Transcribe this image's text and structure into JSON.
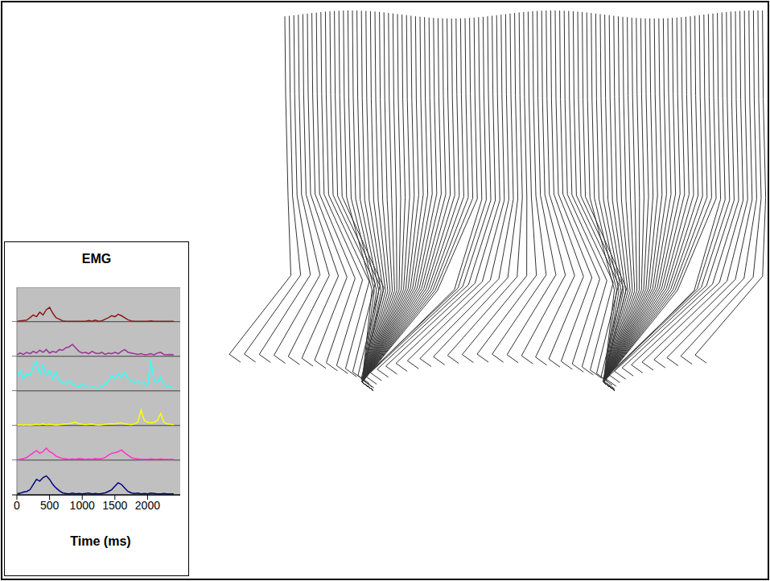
{
  "chart_data": {
    "type": "line",
    "title": "EMG",
    "x_label": "Time (ms)",
    "x": [
      0,
      50,
      100,
      150,
      200,
      250,
      300,
      350,
      400,
      450,
      500,
      550,
      600,
      650,
      700,
      750,
      800,
      850,
      900,
      950,
      1000,
      1050,
      1100,
      1150,
      1200,
      1250,
      1300,
      1350,
      1400,
      1450,
      1500,
      1550,
      1600,
      1650,
      1700,
      1750,
      1800,
      1850,
      1900,
      1950,
      2000,
      2050,
      2100,
      2150,
      2200,
      2250,
      2300,
      2350,
      2400
    ],
    "xlim": [
      0,
      2500
    ],
    "xticks": [
      0,
      500,
      1000,
      1500,
      2000
    ],
    "ylim": [
      0,
      1
    ],
    "yticks": [
      0
    ],
    "tick_labels": "x",
    "series": [
      {
        "color": "#8b1a1a",
        "values": [
          0.02,
          0.03,
          0.04,
          0.05,
          0.12,
          0.2,
          0.15,
          0.28,
          0.2,
          0.35,
          0.42,
          0.25,
          0.12,
          0.08,
          0.03,
          0.02,
          0.02,
          0.02,
          0.02,
          0.02,
          0.02,
          0.02,
          0.04,
          0.02,
          0.05,
          0.02,
          0.03,
          0.08,
          0.12,
          0.18,
          0.15,
          0.22,
          0.18,
          0.12,
          0.06,
          0.03,
          0.02,
          0.02,
          0.02,
          0.02,
          0.02,
          0.03,
          0.02,
          0.02,
          0.02,
          0.02,
          0.02,
          0.02,
          0.02
        ]
      },
      {
        "color": "#993399",
        "values": [
          0.05,
          0.1,
          0.06,
          0.12,
          0.08,
          0.15,
          0.1,
          0.18,
          0.12,
          0.2,
          0.1,
          0.15,
          0.12,
          0.2,
          0.18,
          0.25,
          0.28,
          0.35,
          0.25,
          0.15,
          0.1,
          0.12,
          0.08,
          0.15,
          0.1,
          0.08,
          0.12,
          0.06,
          0.1,
          0.08,
          0.12,
          0.08,
          0.15,
          0.2,
          0.12,
          0.1,
          0.08,
          0.06,
          0.08,
          0.05,
          0.06,
          0.08,
          0.05,
          0.1,
          0.12,
          0.06,
          0.05,
          0.06,
          0.05
        ]
      },
      {
        "color": "#33ffff",
        "values": [
          0.4,
          0.6,
          0.35,
          0.5,
          0.45,
          0.7,
          0.85,
          0.5,
          0.75,
          0.45,
          0.6,
          0.35,
          0.55,
          0.3,
          0.25,
          0.2,
          0.3,
          0.2,
          0.15,
          0.12,
          0.2,
          0.15,
          0.1,
          0.12,
          0.1,
          0.1,
          0.12,
          0.2,
          0.3,
          0.45,
          0.35,
          0.5,
          0.4,
          0.55,
          0.35,
          0.3,
          0.25,
          0.3,
          0.2,
          0.25,
          0.15,
          0.9,
          0.3,
          0.25,
          0.4,
          0.2,
          0.1,
          0.12,
          0.1
        ]
      },
      {
        "color": "#ffff00",
        "values": [
          0.02,
          0.03,
          0.02,
          0.03,
          0.02,
          0.03,
          0.04,
          0.03,
          0.05,
          0.03,
          0.04,
          0.03,
          0.02,
          0.03,
          0.04,
          0.05,
          0.06,
          0.08,
          0.1,
          0.05,
          0.04,
          0.03,
          0.04,
          0.05,
          0.03,
          0.02,
          0.03,
          0.04,
          0.05,
          0.06,
          0.05,
          0.07,
          0.08,
          0.05,
          0.04,
          0.03,
          0.05,
          0.1,
          0.45,
          0.15,
          0.1,
          0.08,
          0.1,
          0.15,
          0.35,
          0.1,
          0.05,
          0.04,
          0.03
        ]
      },
      {
        "color": "#ff33cc",
        "values": [
          0.02,
          0.03,
          0.05,
          0.08,
          0.15,
          0.22,
          0.28,
          0.2,
          0.25,
          0.35,
          0.25,
          0.2,
          0.12,
          0.08,
          0.05,
          0.04,
          0.03,
          0.04,
          0.03,
          0.05,
          0.04,
          0.03,
          0.04,
          0.03,
          0.05,
          0.04,
          0.05,
          0.08,
          0.15,
          0.2,
          0.22,
          0.25,
          0.3,
          0.22,
          0.15,
          0.08,
          0.05,
          0.04,
          0.03,
          0.03,
          0.03,
          0.04,
          0.03,
          0.03,
          0.04,
          0.03,
          0.03,
          0.03,
          0.03
        ]
      },
      {
        "color": "#000080",
        "values": [
          0.03,
          0.05,
          0.08,
          0.1,
          0.15,
          0.3,
          0.45,
          0.4,
          0.5,
          0.55,
          0.45,
          0.3,
          0.2,
          0.12,
          0.06,
          0.04,
          0.03,
          0.05,
          0.03,
          0.04,
          0.03,
          0.04,
          0.05,
          0.03,
          0.04,
          0.03,
          0.04,
          0.06,
          0.1,
          0.15,
          0.25,
          0.35,
          0.3,
          0.2,
          0.1,
          0.06,
          0.04,
          0.05,
          0.03,
          0.04,
          0.03,
          0.05,
          0.04,
          0.03,
          0.03,
          0.04,
          0.03,
          0.03,
          0.03
        ]
      }
    ]
  }
}
